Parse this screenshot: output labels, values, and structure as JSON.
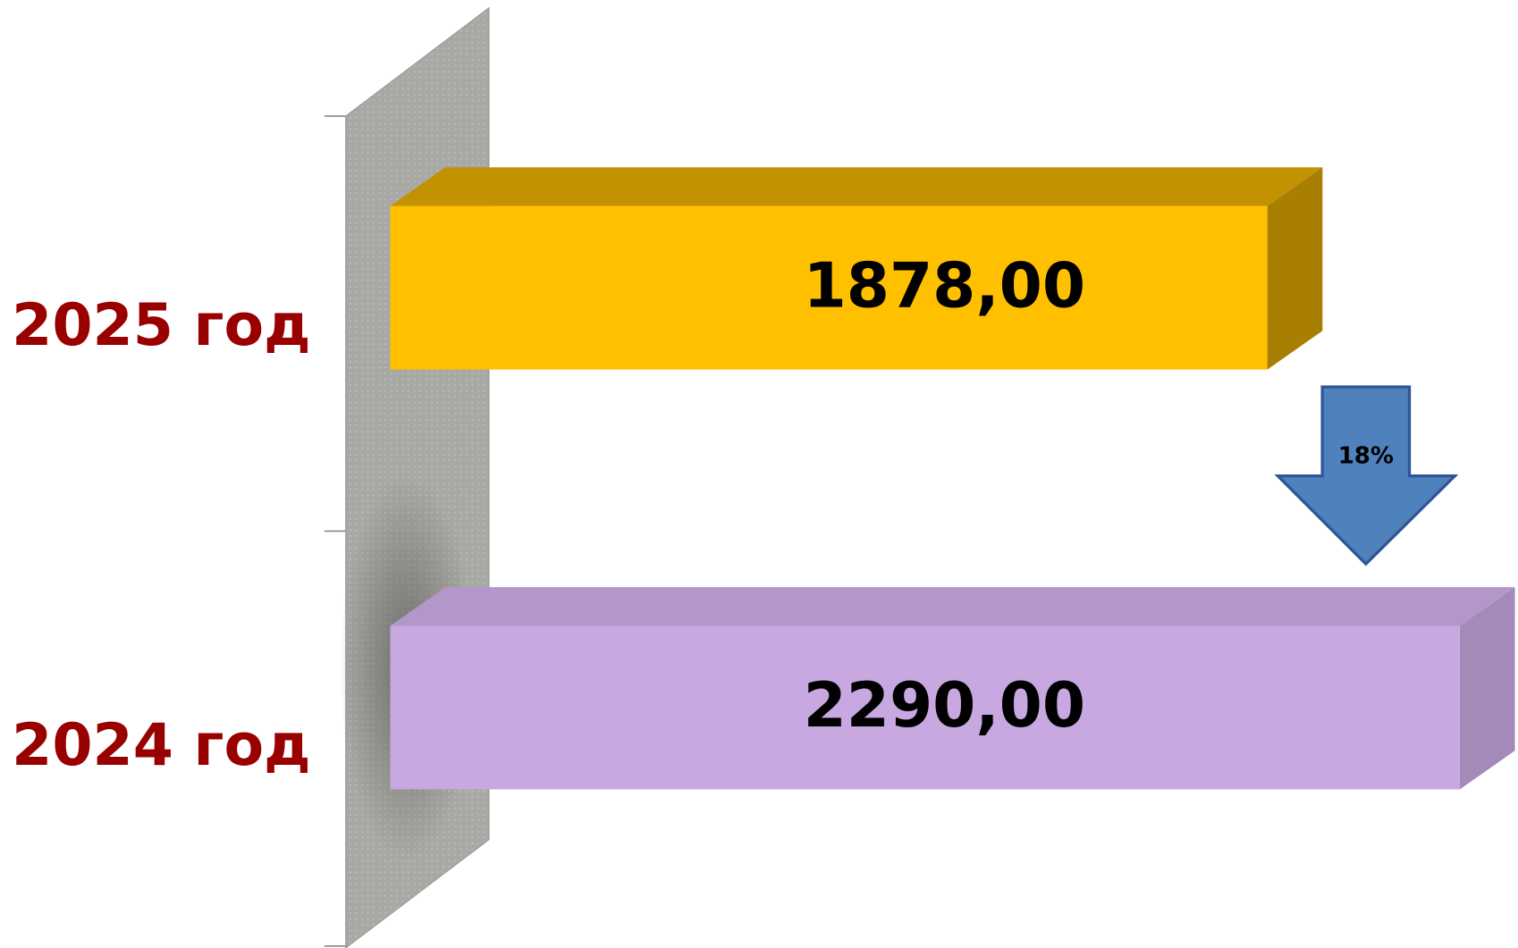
{
  "chart_data": {
    "type": "bar3d_horizontal",
    "categories": [
      "2025 год",
      "2024 год"
    ],
    "values": [
      1878,
      2290
    ],
    "value_labels": [
      "1878,00",
      "2290,00"
    ],
    "colors": [
      "#ffc000",
      "#c8a8e0"
    ],
    "xlim": [
      0,
      2290
    ],
    "annotation": "18%"
  }
}
